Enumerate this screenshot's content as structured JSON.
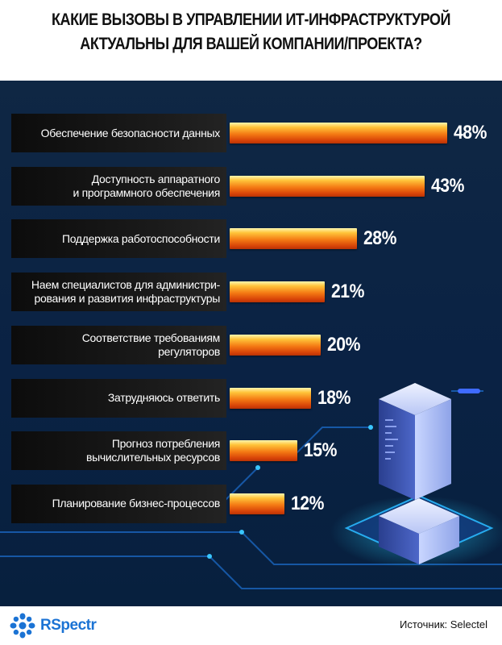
{
  "header": {
    "title_line1": "КАКИЕ ВЫЗОВЫ В УПРАВЛЕНИИ ИТ-ИНФРАСТРУКТУРОЙ",
    "title_line2": "АКТУАЛЬНЫ ДЛЯ ВАШЕЙ КОМПАНИИ/ПРОЕКТА?"
  },
  "chart_data": {
    "type": "bar",
    "orientation": "horizontal",
    "title": "КАКИЕ ВЫЗОВЫ В УПРАВЛЕНИИ ИТ-ИНФРАСТРУКТУРОЙ АКТУАЛЬНЫ ДЛЯ ВАШЕЙ КОМПАНИИ/ПРОЕКТА?",
    "categories": [
      "Обеспечение безопасности данных",
      "Доступность аппаратного\nи программного обеспечения",
      "Поддержка работоспособности",
      "Наем специалистов для администри-\nрования и развития инфраструктуры",
      "Соответствие требованиям\nрегуляторов",
      "Затрудняюсь ответить",
      "Прогноз потребления\nвычислительных ресурсов",
      "Планирование бизнес-процессов"
    ],
    "values": [
      48,
      43,
      28,
      21,
      20,
      18,
      15,
      12
    ],
    "value_labels": [
      "48%",
      "43%",
      "28%",
      "21%",
      "20%",
      "18%",
      "15%",
      "12%"
    ],
    "unit": "%",
    "xlim": [
      0,
      48
    ],
    "grid": false,
    "bar_color": "#f47a14"
  },
  "footer": {
    "brand": "RSpectr",
    "source": "Источник: Selectel"
  },
  "colors": {
    "background": "#0a2244",
    "label_box": "#151515",
    "bar_top": "#ffd84a",
    "bar_bottom": "#d84408",
    "brand": "#1b73d4"
  }
}
